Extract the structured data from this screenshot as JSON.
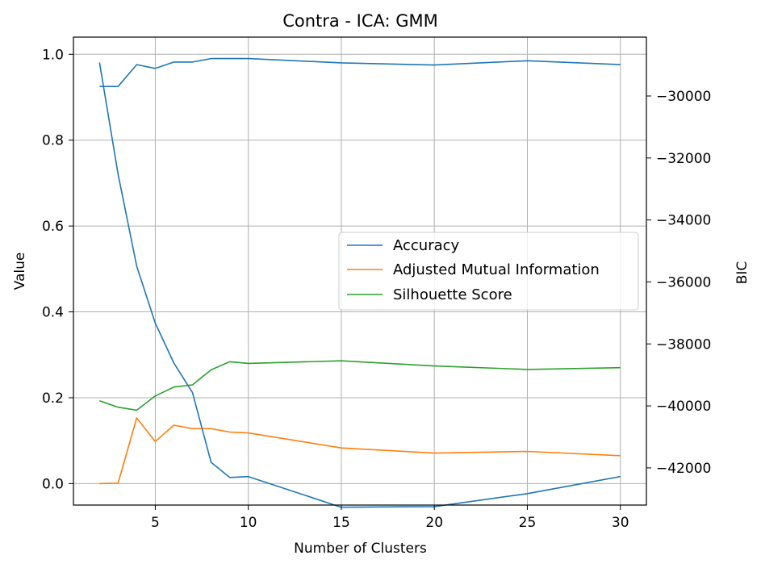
{
  "chart_data": {
    "type": "line",
    "title": "Contra - ICA: GMM",
    "xlabel": "Number of Clusters",
    "ylabel": "Value",
    "y2label": "BIC",
    "xlim": [
      0.6,
      31.4
    ],
    "ylim": [
      -0.05,
      1.04
    ],
    "y2lim": [
      -43200,
      -28100
    ],
    "grid": true,
    "legend_position": "center-right",
    "x_ticks": [
      "5",
      "10",
      "15",
      "20",
      "25",
      "30"
    ],
    "y_ticks": [
      "0.0",
      "0.2",
      "0.4",
      "0.6",
      "0.8",
      "1.0"
    ],
    "y2_ticks": [
      "−30000",
      "−32000",
      "−34000",
      "−36000",
      "−38000",
      "−40000",
      "−42000"
    ],
    "x": [
      2,
      3,
      4,
      5,
      6,
      7,
      8,
      9,
      10,
      15,
      20,
      25,
      30
    ],
    "series": [
      {
        "name": "Accuracy",
        "color": "#1f77b4",
        "values": [
          0.925,
          0.925,
          0.976,
          0.967,
          0.982,
          0.982,
          0.99,
          0.99,
          0.99,
          0.98,
          0.975,
          0.985,
          0.976
        ]
      },
      {
        "name": "Adjusted Mutual Information",
        "color": "#ff7f0e",
        "values": [
          0.0,
          0.001,
          0.153,
          0.098,
          0.136,
          0.128,
          0.128,
          0.12,
          0.118,
          0.083,
          0.071,
          0.075,
          0.065
        ]
      },
      {
        "name": "Silhouette Score",
        "color": "#2ca02c",
        "values": [
          0.193,
          0.178,
          0.171,
          0.204,
          0.225,
          0.23,
          0.265,
          0.284,
          0.28,
          0.286,
          0.274,
          0.266,
          0.27
        ]
      }
    ],
    "bic_series": {
      "name": "BIC",
      "color": "#1f77b4",
      "values": [
        -28920,
        -32520,
        -35490,
        -37330,
        -38620,
        -39570,
        -41820,
        -42310,
        -42280,
        -43270,
        -43250,
        -42830,
        -42280
      ]
    }
  }
}
